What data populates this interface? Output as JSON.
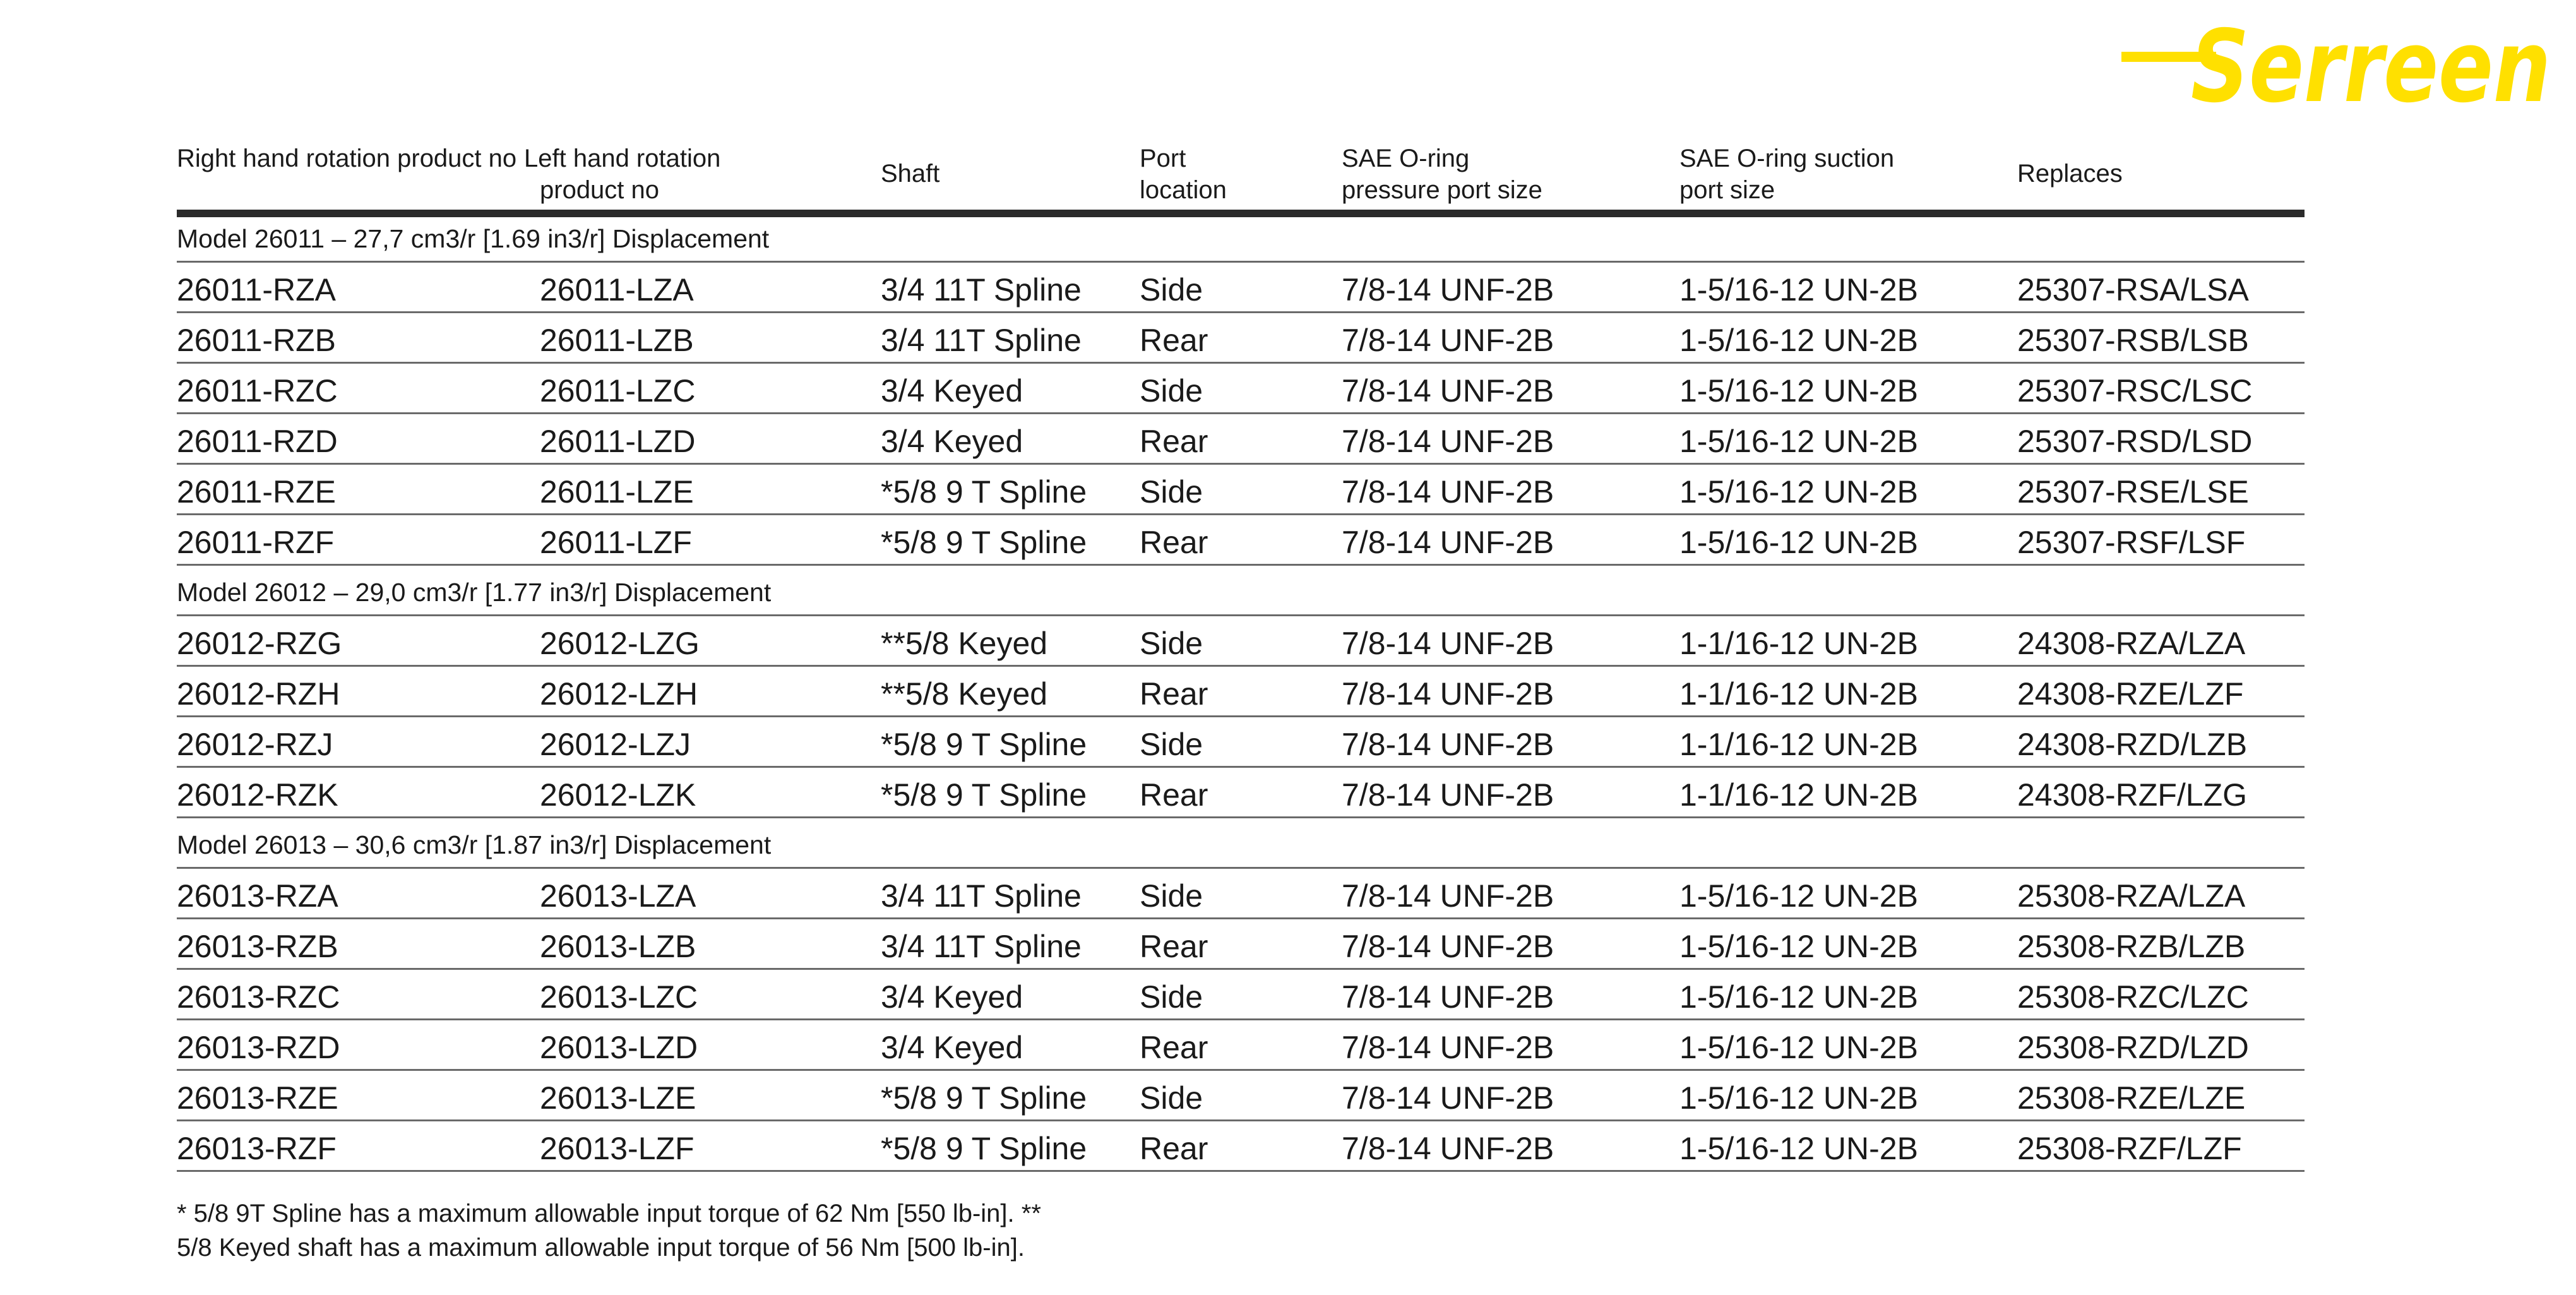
{
  "brand": {
    "logo_text": "Serreen",
    "color": "#FFE000"
  },
  "table": {
    "headers": {
      "right_hand": "Right hand rotation product no",
      "left_hand_line1": "Left hand rotation",
      "left_hand_line2": "product no",
      "shaft": "Shaft",
      "port_line1": "Port",
      "port_line2": "location",
      "pressure_line1": "SAE O-ring",
      "pressure_line2": "pressure port size",
      "suction_line1": "SAE O-ring suction",
      "suction_line2": "port size",
      "replaces": "Replaces"
    },
    "groups": [
      {
        "title": "Model 26011 – 27,7 cm3/r [1.69 in3/r] Displacement",
        "rows": [
          [
            "26011-RZA",
            "26011-LZA",
            "3/4 11T Spline",
            "Side",
            "7/8-14 UNF-2B",
            "1-5/16-12 UN-2B",
            "25307-RSA/LSA"
          ],
          [
            "26011-RZB",
            "26011-LZB",
            "3/4 11T Spline",
            "Rear",
            "7/8-14 UNF-2B",
            "1-5/16-12 UN-2B",
            "25307-RSB/LSB"
          ],
          [
            "26011-RZC",
            "26011-LZC",
            "3/4 Keyed",
            "Side",
            "7/8-14 UNF-2B",
            "1-5/16-12 UN-2B",
            "25307-RSC/LSC"
          ],
          [
            "26011-RZD",
            "26011-LZD",
            "3/4 Keyed",
            "Rear",
            "7/8-14 UNF-2B",
            "1-5/16-12 UN-2B",
            "25307-RSD/LSD"
          ],
          [
            "26011-RZE",
            "26011-LZE",
            "*5/8 9 T Spline",
            "Side",
            "7/8-14 UNF-2B",
            "1-5/16-12 UN-2B",
            "25307-RSE/LSE"
          ],
          [
            "26011-RZF",
            "26011-LZF",
            "*5/8 9 T Spline",
            "Rear",
            "7/8-14 UNF-2B",
            "1-5/16-12 UN-2B",
            "25307-RSF/LSF"
          ]
        ]
      },
      {
        "title": "Model 26012 – 29,0 cm3/r [1.77 in3/r] Displacement",
        "rows": [
          [
            "26012-RZG",
            "26012-LZG",
            "**5/8 Keyed",
            "Side",
            "7/8-14 UNF-2B",
            "1-1/16-12 UN-2B",
            "24308-RZA/LZA"
          ],
          [
            "26012-RZH",
            "26012-LZH",
            "**5/8 Keyed",
            "Rear",
            "7/8-14 UNF-2B",
            "1-1/16-12 UN-2B",
            "24308-RZE/LZF"
          ],
          [
            "26012-RZJ",
            "26012-LZJ",
            "*5/8 9 T Spline",
            "Side",
            "7/8-14 UNF-2B",
            "1-1/16-12 UN-2B",
            "24308-RZD/LZB"
          ],
          [
            "26012-RZK",
            "26012-LZK",
            "*5/8 9 T Spline",
            "Rear",
            "7/8-14 UNF-2B",
            "1-1/16-12 UN-2B",
            "24308-RZF/LZG"
          ]
        ]
      },
      {
        "title": "Model 26013 – 30,6 cm3/r [1.87 in3/r] Displacement",
        "rows": [
          [
            "26013-RZA",
            "26013-LZA",
            "3/4 11T Spline",
            "Side",
            "7/8-14 UNF-2B",
            "1-5/16-12 UN-2B",
            "25308-RZA/LZA"
          ],
          [
            "26013-RZB",
            "26013-LZB",
            "3/4 11T Spline",
            "Rear",
            "7/8-14 UNF-2B",
            "1-5/16-12 UN-2B",
            "25308-RZB/LZB"
          ],
          [
            "26013-RZC",
            "26013-LZC",
            "3/4 Keyed",
            "Side",
            "7/8-14 UNF-2B",
            "1-5/16-12 UN-2B",
            "25308-RZC/LZC"
          ],
          [
            "26013-RZD",
            "26013-LZD",
            "3/4 Keyed",
            "Rear",
            "7/8-14 UNF-2B",
            "1-5/16-12 UN-2B",
            "25308-RZD/LZD"
          ],
          [
            "26013-RZE",
            "26013-LZE",
            "*5/8 9 T Spline",
            "Side",
            "7/8-14 UNF-2B",
            "1-5/16-12 UN-2B",
            "25308-RZE/LZE"
          ],
          [
            "26013-RZF",
            "26013-LZF",
            "*5/8 9 T Spline",
            "Rear",
            "7/8-14 UNF-2B",
            "1-5/16-12 UN-2B",
            "25308-RZF/LZF"
          ]
        ]
      }
    ]
  },
  "footnote": {
    "line1": "* 5/8 9T Spline has a maximum allowable input torque of 62 Nm [550 lb-in]. **",
    "line2": "5/8 Keyed shaft has a maximum allowable input torque of 56 Nm [500 lb-in]."
  }
}
